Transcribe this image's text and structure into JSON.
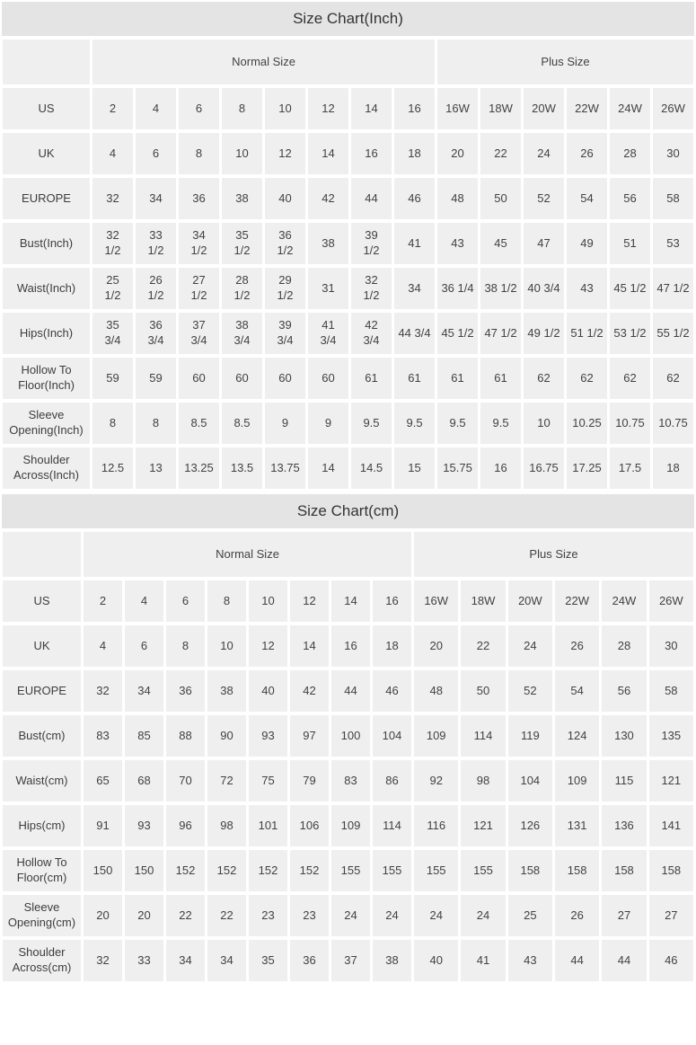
{
  "tables": [
    {
      "title": "Size Chart(Inch)",
      "groups": {
        "normal": "Normal Size",
        "plus": "Plus Size"
      },
      "rows": [
        {
          "label": "US",
          "values": [
            "2",
            "4",
            "6",
            "8",
            "10",
            "12",
            "14",
            "16",
            "16W",
            "18W",
            "20W",
            "22W",
            "24W",
            "26W"
          ]
        },
        {
          "label": "UK",
          "values": [
            "4",
            "6",
            "8",
            "10",
            "12",
            "14",
            "16",
            "18",
            "20",
            "22",
            "24",
            "26",
            "28",
            "30"
          ]
        },
        {
          "label": "EUROPE",
          "values": [
            "32",
            "34",
            "36",
            "38",
            "40",
            "42",
            "44",
            "46",
            "48",
            "50",
            "52",
            "54",
            "56",
            "58"
          ]
        },
        {
          "label": "Bust(Inch)",
          "values": [
            "32\n1/2",
            "33\n1/2",
            "34\n1/2",
            "35\n1/2",
            "36\n1/2",
            "38",
            "39\n1/2",
            "41",
            "43",
            "45",
            "47",
            "49",
            "51",
            "53"
          ]
        },
        {
          "label": "Waist(Inch)",
          "values": [
            "25\n1/2",
            "26\n1/2",
            "27\n1/2",
            "28\n1/2",
            "29\n1/2",
            "31",
            "32\n1/2",
            "34",
            "36 1/4",
            "38 1/2",
            "40 3/4",
            "43",
            "45 1/2",
            "47 1/2"
          ]
        },
        {
          "label": "Hips(Inch)",
          "values": [
            "35\n3/4",
            "36\n3/4",
            "37\n3/4",
            "38\n3/4",
            "39\n3/4",
            "41\n3/4",
            "42\n3/4",
            "44 3/4",
            "45 1/2",
            "47 1/2",
            "49 1/2",
            "51 1/2",
            "53 1/2",
            "55 1/2"
          ]
        },
        {
          "label": "Hollow To Floor(Inch)",
          "values": [
            "59",
            "59",
            "60",
            "60",
            "60",
            "60",
            "61",
            "61",
            "61",
            "61",
            "62",
            "62",
            "62",
            "62"
          ]
        },
        {
          "label": "Sleeve Opening(Inch)",
          "values": [
            "8",
            "8",
            "8.5",
            "8.5",
            "9",
            "9",
            "9.5",
            "9.5",
            "9.5",
            "9.5",
            "10",
            "10.25",
            "10.75",
            "10.75"
          ]
        },
        {
          "label": "Shoulder Across(Inch)",
          "values": [
            "12.5",
            "13",
            "13.25",
            "13.5",
            "13.75",
            "14",
            "14.5",
            "15",
            "15.75",
            "16",
            "16.75",
            "17.25",
            "17.5",
            "18"
          ]
        }
      ]
    },
    {
      "title": "Size Chart(cm)",
      "groups": {
        "normal": "Normal Size",
        "plus": "Plus Size"
      },
      "rows": [
        {
          "label": "US",
          "values": [
            "2",
            "4",
            "6",
            "8",
            "10",
            "12",
            "14",
            "16",
            "16W",
            "18W",
            "20W",
            "22W",
            "24W",
            "26W"
          ]
        },
        {
          "label": "UK",
          "values": [
            "4",
            "6",
            "8",
            "10",
            "12",
            "14",
            "16",
            "18",
            "20",
            "22",
            "24",
            "26",
            "28",
            "30"
          ]
        },
        {
          "label": "EUROPE",
          "values": [
            "32",
            "34",
            "36",
            "38",
            "40",
            "42",
            "44",
            "46",
            "48",
            "50",
            "52",
            "54",
            "56",
            "58"
          ]
        },
        {
          "label": "Bust(cm)",
          "values": [
            "83",
            "85",
            "88",
            "90",
            "93",
            "97",
            "100",
            "104",
            "109",
            "114",
            "119",
            "124",
            "130",
            "135"
          ]
        },
        {
          "label": "Waist(cm)",
          "values": [
            "65",
            "68",
            "70",
            "72",
            "75",
            "79",
            "83",
            "86",
            "92",
            "98",
            "104",
            "109",
            "115",
            "121"
          ]
        },
        {
          "label": "Hips(cm)",
          "values": [
            "91",
            "93",
            "96",
            "98",
            "101",
            "106",
            "109",
            "114",
            "116",
            "121",
            "126",
            "131",
            "136",
            "141"
          ]
        },
        {
          "label": "Hollow To Floor(cm)",
          "values": [
            "150",
            "150",
            "152",
            "152",
            "152",
            "152",
            "155",
            "155",
            "155",
            "155",
            "158",
            "158",
            "158",
            "158"
          ]
        },
        {
          "label": "Sleeve Opening(cm)",
          "values": [
            "20",
            "20",
            "22",
            "22",
            "23",
            "23",
            "24",
            "24",
            "24",
            "24",
            "25",
            "26",
            "27",
            "27"
          ]
        },
        {
          "label": "Shoulder Across(cm)",
          "values": [
            "32",
            "33",
            "34",
            "34",
            "35",
            "36",
            "37",
            "38",
            "40",
            "41",
            "43",
            "44",
            "44",
            "46"
          ]
        }
      ]
    }
  ]
}
